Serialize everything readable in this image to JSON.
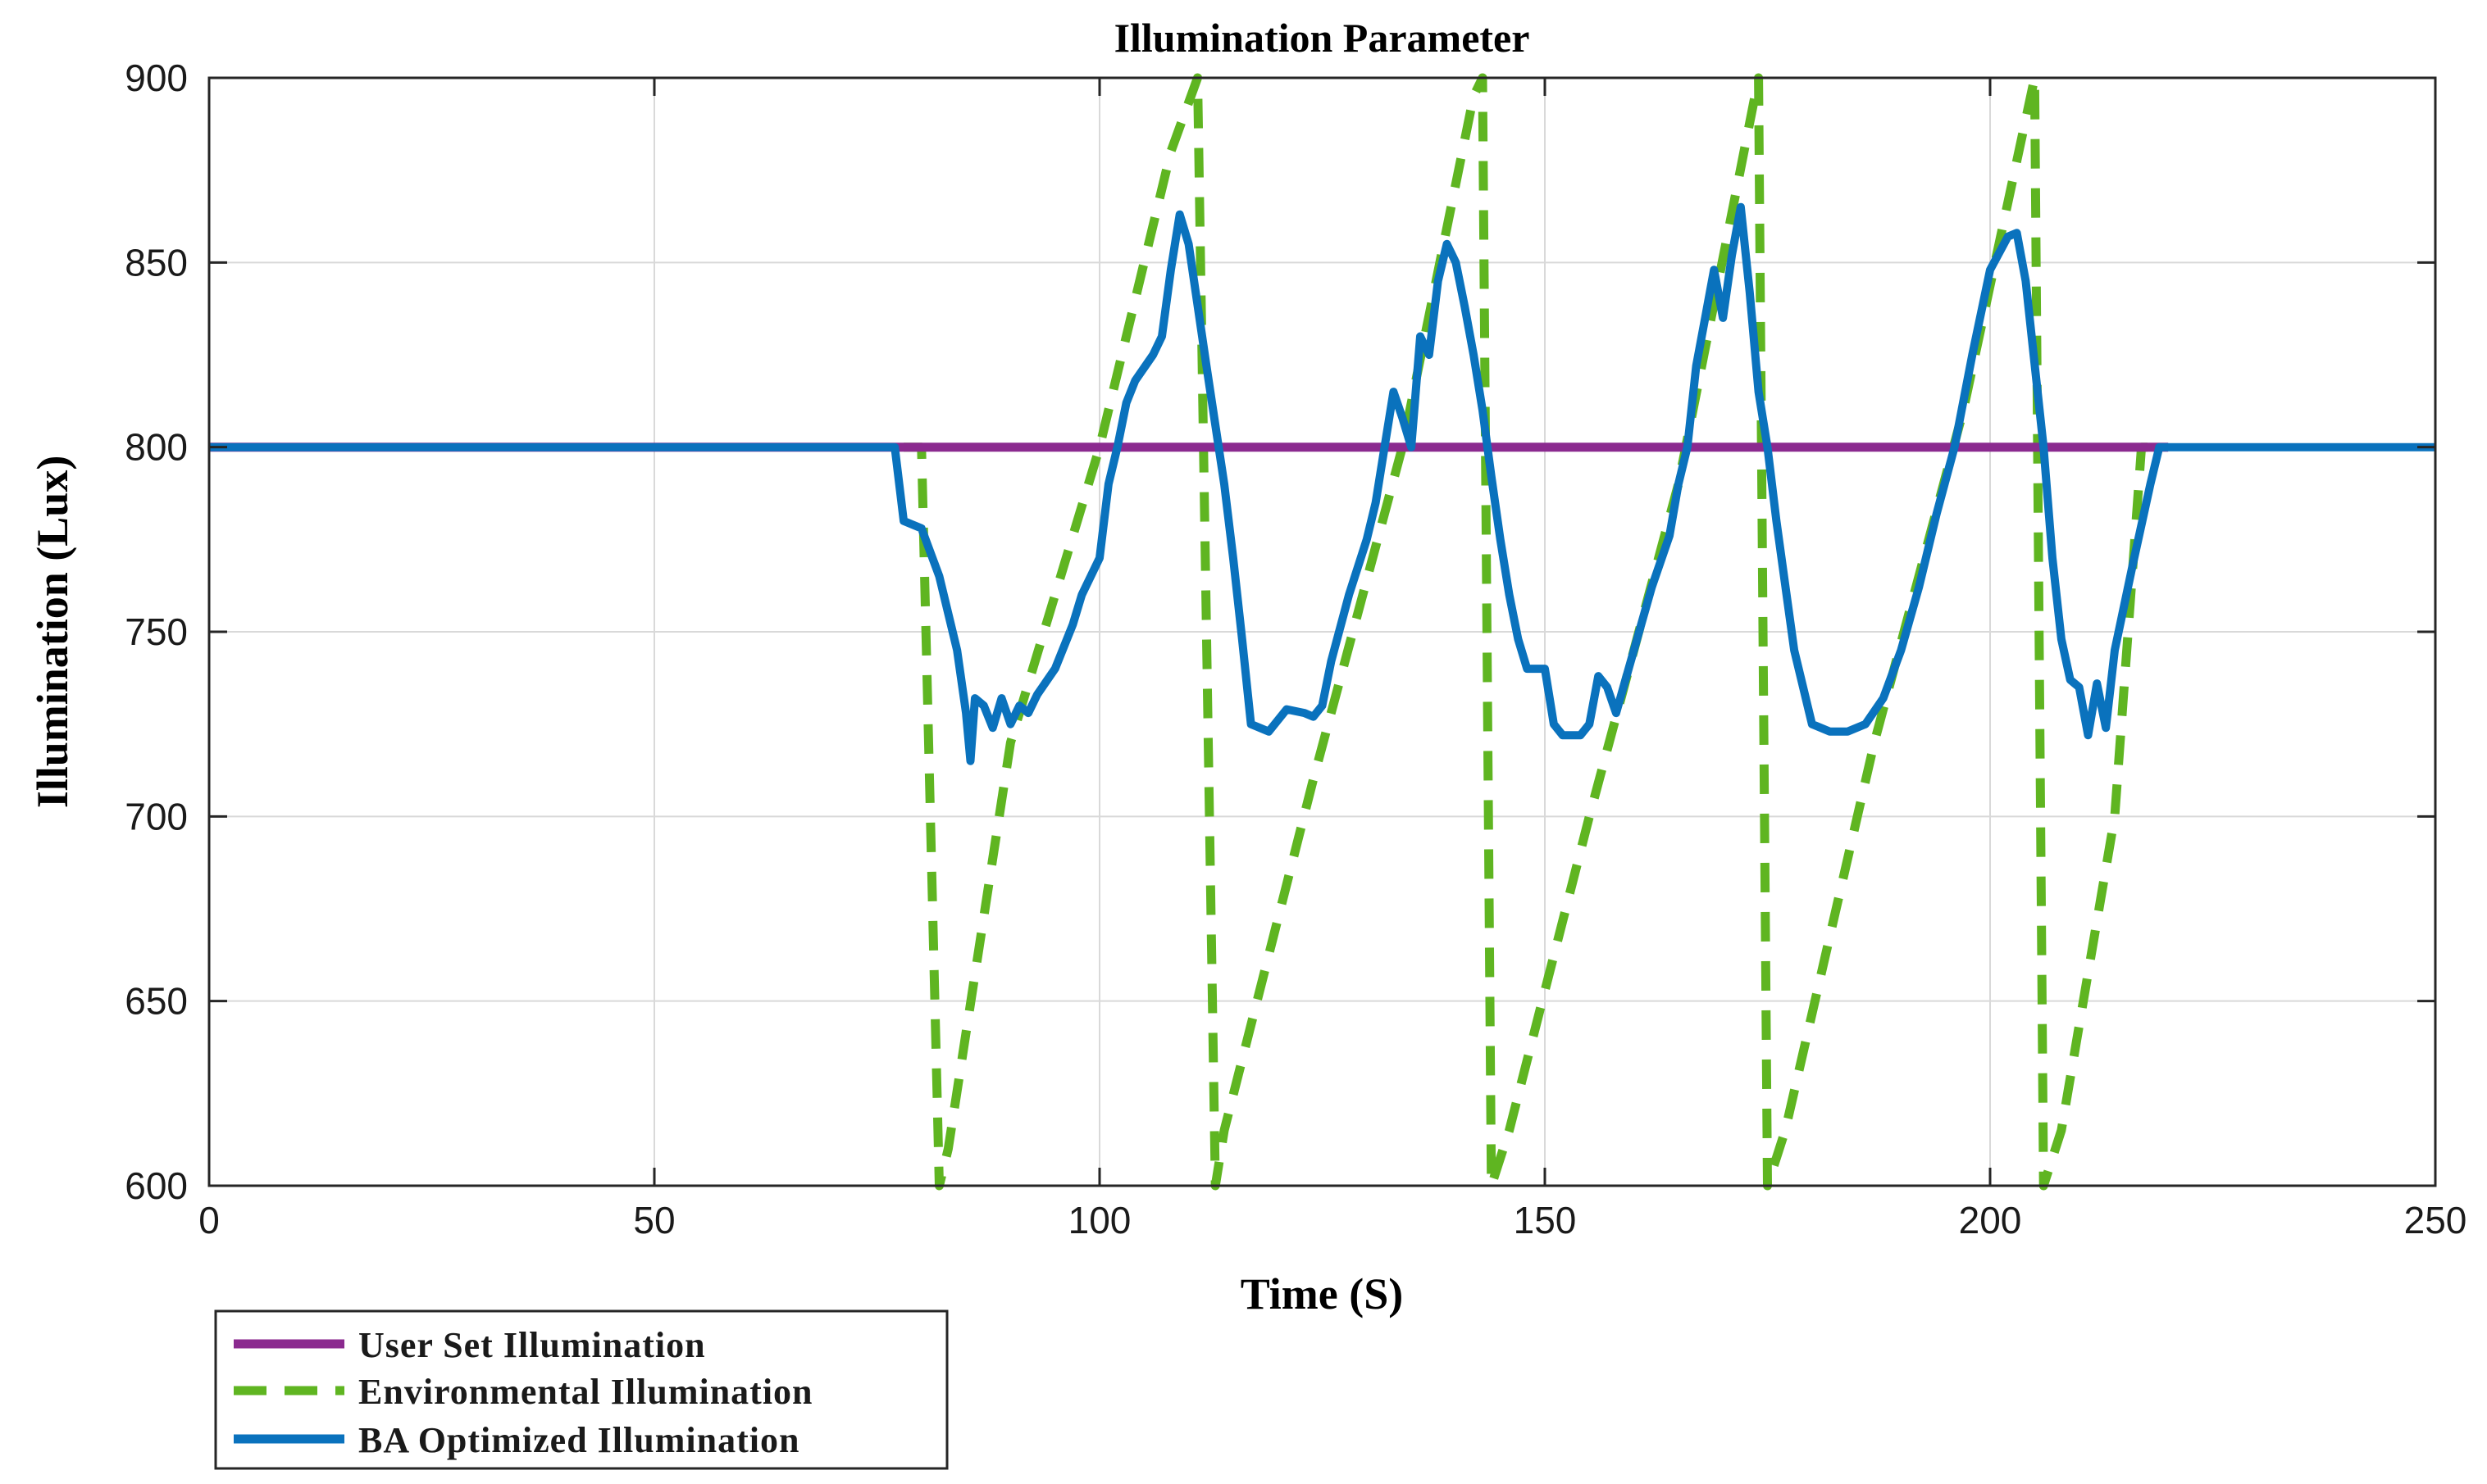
{
  "chart_data": {
    "type": "line",
    "title": "Illumination Parameter",
    "xlabel": "Time (S)",
    "ylabel": "Illumination (Lux)",
    "xlim": [
      0,
      250
    ],
    "ylim": [
      600,
      900
    ],
    "xticks": [
      0,
      50,
      100,
      150,
      200,
      250
    ],
    "yticks": [
      600,
      650,
      700,
      750,
      800,
      850,
      900
    ],
    "grid": true,
    "legend_position": "bottom-left outside",
    "series": [
      {
        "name": "User Set Illumination",
        "color": "#8b2a8f",
        "style": "solid",
        "points": [
          [
            0,
            800
          ],
          [
            220,
            800
          ]
        ]
      },
      {
        "name": "Environmental Illumination",
        "color": "#5fb521",
        "style": "dashed",
        "points": [
          [
            78,
            800
          ],
          [
            80,
            800
          ],
          [
            82,
            600
          ],
          [
            83,
            610
          ],
          [
            90,
            720
          ],
          [
            100,
            800
          ],
          [
            108,
            880
          ],
          [
            111,
            900
          ],
          [
            113,
            600
          ],
          [
            114,
            615
          ],
          [
            124,
            710
          ],
          [
            134,
            800
          ],
          [
            142,
            895
          ],
          [
            143,
            900
          ],
          [
            144,
            600
          ],
          [
            146,
            615
          ],
          [
            155,
            700
          ],
          [
            165,
            790
          ],
          [
            174,
            900
          ],
          [
            175,
            600
          ],
          [
            177,
            615
          ],
          [
            187,
            720
          ],
          [
            197,
            810
          ],
          [
            205,
            900
          ],
          [
            206,
            600
          ],
          [
            208,
            615
          ],
          [
            214,
            700
          ],
          [
            217,
            800
          ],
          [
            218,
            800
          ]
        ]
      },
      {
        "name": "BA Optimized Illumination",
        "color": "#0a72bd",
        "style": "solid",
        "points": [
          [
            0,
            800
          ],
          [
            77,
            800
          ],
          [
            78,
            780
          ],
          [
            80,
            778
          ],
          [
            82,
            765
          ],
          [
            84,
            745
          ],
          [
            85,
            728
          ],
          [
            85.5,
            715
          ],
          [
            86,
            732
          ],
          [
            87,
            730
          ],
          [
            88,
            724
          ],
          [
            89,
            732
          ],
          [
            90,
            725
          ],
          [
            91,
            730
          ],
          [
            92,
            728
          ],
          [
            93,
            733
          ],
          [
            95,
            740
          ],
          [
            97,
            752
          ],
          [
            98,
            760
          ],
          [
            100,
            770
          ],
          [
            101,
            790
          ],
          [
            102,
            800
          ],
          [
            103,
            812
          ],
          [
            104,
            818
          ],
          [
            106,
            825
          ],
          [
            107,
            830
          ],
          [
            108,
            848
          ],
          [
            109,
            863
          ],
          [
            110,
            855
          ],
          [
            112,
            822
          ],
          [
            114,
            790
          ],
          [
            115,
            770
          ],
          [
            116,
            748
          ],
          [
            117,
            725
          ],
          [
            119,
            723
          ],
          [
            121,
            729
          ],
          [
            123,
            728
          ],
          [
            124,
            727
          ],
          [
            125,
            730
          ],
          [
            126,
            742
          ],
          [
            128,
            760
          ],
          [
            130,
            775
          ],
          [
            131,
            785
          ],
          [
            132,
            800
          ],
          [
            133,
            815
          ],
          [
            134,
            808
          ],
          [
            135,
            800
          ],
          [
            136,
            830
          ],
          [
            137,
            825
          ],
          [
            138,
            845
          ],
          [
            139,
            855
          ],
          [
            140,
            850
          ],
          [
            141,
            838
          ],
          [
            142,
            825
          ],
          [
            143,
            810
          ],
          [
            144,
            792
          ],
          [
            145,
            775
          ],
          [
            146,
            760
          ],
          [
            147,
            748
          ],
          [
            148,
            740
          ],
          [
            150,
            740
          ],
          [
            151,
            725
          ],
          [
            152,
            722
          ],
          [
            154,
            722
          ],
          [
            155,
            725
          ],
          [
            156,
            738
          ],
          [
            157,
            735
          ],
          [
            158,
            728
          ],
          [
            160,
            745
          ],
          [
            162,
            762
          ],
          [
            164,
            776
          ],
          [
            165,
            790
          ],
          [
            166,
            800
          ],
          [
            167,
            822
          ],
          [
            168,
            835
          ],
          [
            169,
            848
          ],
          [
            170,
            835
          ],
          [
            171,
            852
          ],
          [
            172,
            865
          ],
          [
            173,
            842
          ],
          [
            174,
            815
          ],
          [
            175,
            800
          ],
          [
            176,
            780
          ],
          [
            178,
            745
          ],
          [
            180,
            725
          ],
          [
            182,
            723
          ],
          [
            184,
            723
          ],
          [
            186,
            725
          ],
          [
            188,
            732
          ],
          [
            190,
            745
          ],
          [
            192,
            762
          ],
          [
            194,
            782
          ],
          [
            196,
            800
          ],
          [
            198,
            825
          ],
          [
            200,
            848
          ],
          [
            202,
            857
          ],
          [
            203,
            858
          ],
          [
            204,
            845
          ],
          [
            206,
            800
          ],
          [
            207,
            770
          ],
          [
            208,
            748
          ],
          [
            209,
            737
          ],
          [
            210,
            735
          ],
          [
            211,
            722
          ],
          [
            212,
            736
          ],
          [
            213,
            724
          ],
          [
            214,
            745
          ],
          [
            216,
            768
          ],
          [
            218,
            790
          ],
          [
            219,
            800
          ],
          [
            250,
            800
          ]
        ]
      }
    ]
  }
}
